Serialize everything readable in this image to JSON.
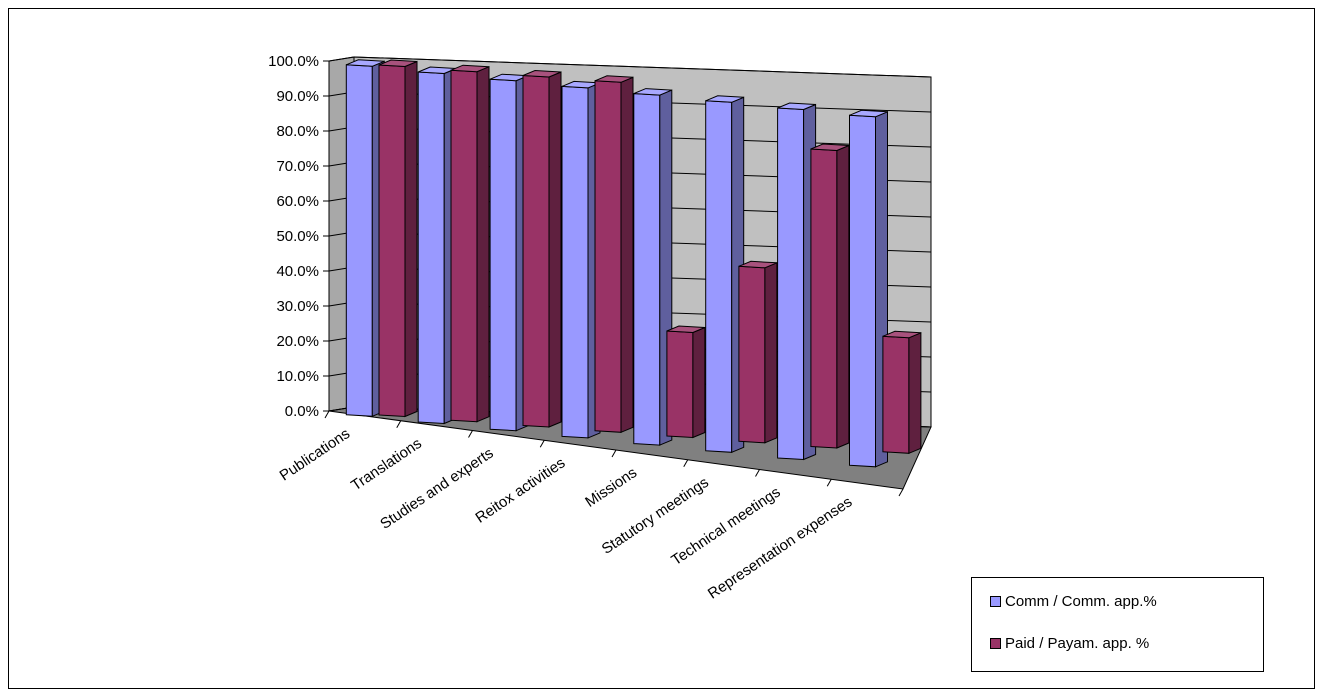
{
  "chart_data": {
    "type": "bar",
    "style": "3d-clustered-column",
    "title": "",
    "xlabel": "",
    "ylabel": "",
    "ylim": [
      0,
      100
    ],
    "y_ticks": [
      "0.0%",
      "10.0%",
      "20.0%",
      "30.0%",
      "40.0%",
      "50.0%",
      "60.0%",
      "70.0%",
      "80.0%",
      "90.0%",
      "100.0%"
    ],
    "categories": [
      "Publications",
      "Translations",
      "Studies and experts",
      "Reitox activities",
      "Missions",
      "Statutory meetings",
      "Technical meetings",
      "Representation expenses"
    ],
    "series": [
      {
        "name": "Comm / Comm. app.%",
        "color": "#9999ff",
        "values": [
          100,
          100,
          100,
          100,
          100,
          100,
          100,
          100
        ]
      },
      {
        "name": "Paid / Payam. app. %",
        "color": "#993366",
        "values": [
          100,
          100,
          100,
          100,
          30,
          50,
          85,
          33
        ]
      }
    ],
    "legend_position": "right-bottom",
    "grid": true
  }
}
